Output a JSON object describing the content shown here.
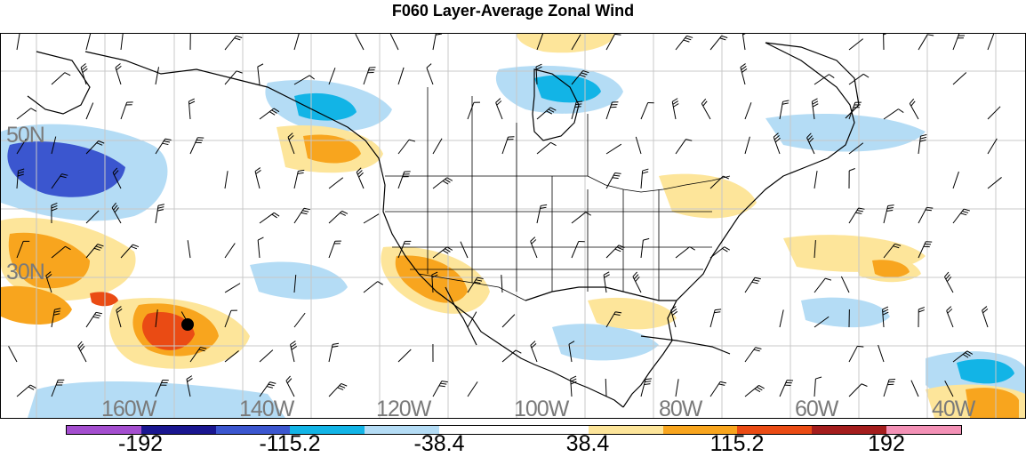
{
  "title": "F060 Layer-Average Zonal Wind",
  "map": {
    "latitude_labels": [
      "50N",
      "30N"
    ],
    "longitude_labels": [
      "160W",
      "140W",
      "120W",
      "100W",
      "80W",
      "60W",
      "40W"
    ],
    "marker": "black-dot"
  },
  "colorbar": {
    "colors": [
      "#a44ecf",
      "#1a1690",
      "#3b56cf",
      "#12b4e6",
      "#b4dcf5",
      "#ffffff",
      "#ffffff",
      "#fde59a",
      "#f8a51e",
      "#ea4b14",
      "#a41d1d",
      "#f391b6"
    ],
    "labels": [
      "-192",
      "-115.2",
      "-38.4",
      "38.4",
      "115.2",
      "192"
    ]
  },
  "colors": {
    "positive_light": "#fde59a",
    "positive_mid": "#f8a51e",
    "positive_strong": "#ea4b14",
    "negative_light": "#b4dcf5",
    "negative_mid": "#12b4e6",
    "negative_strong": "#3b56cf",
    "lat_lon_label": "#7a7a7a"
  }
}
